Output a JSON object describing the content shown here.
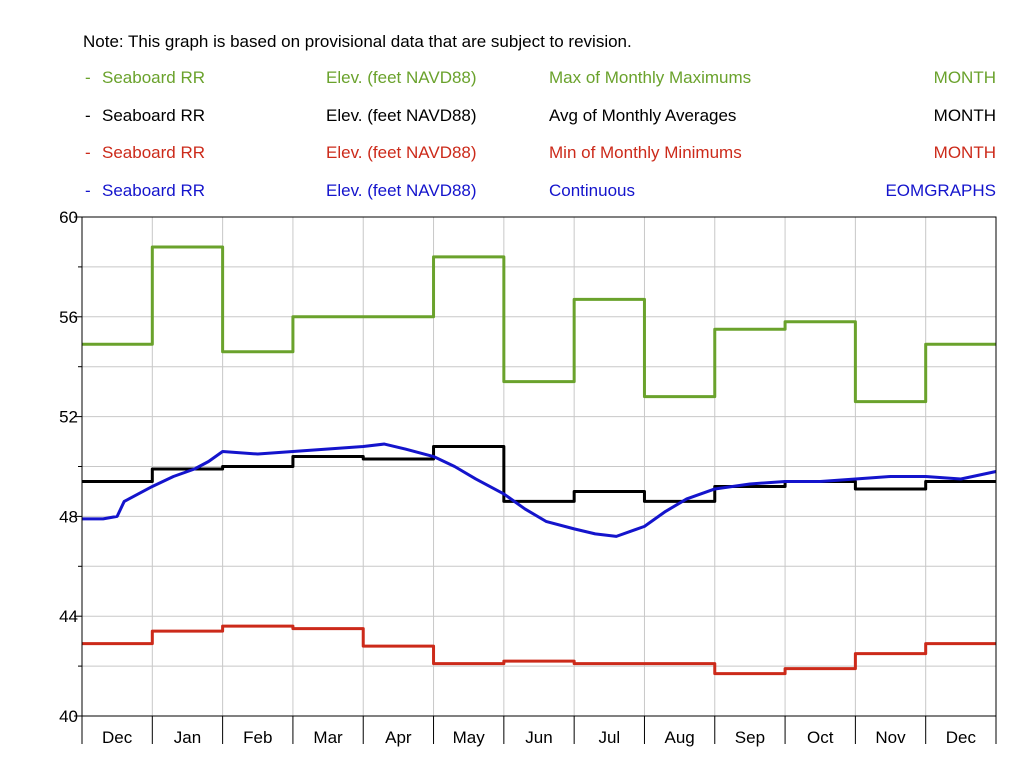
{
  "note": "Note: This graph is based on provisional data that are subject to revision.",
  "legend": [
    {
      "marker": "-",
      "location": "Seaboard RR",
      "parameter": "Elev. (feet NAVD88)",
      "statistic": "Max of Monthly Maximums",
      "interval": "MONTH",
      "color": "#6aa22c"
    },
    {
      "marker": "-",
      "location": "Seaboard RR",
      "parameter": "Elev. (feet NAVD88)",
      "statistic": "Avg of Monthly Averages",
      "interval": "MONTH",
      "color": "#000000"
    },
    {
      "marker": "-",
      "location": "Seaboard RR",
      "parameter": "Elev. (feet NAVD88)",
      "statistic": "Min of Monthly Minimums",
      "interval": "MONTH",
      "color": "#cc2a1a"
    },
    {
      "marker": "-",
      "location": "Seaboard RR",
      "parameter": "Elev. (feet NAVD88)",
      "statistic": "Continuous",
      "interval": "EOMGRAPHS",
      "color": "#1414cc"
    }
  ],
  "chart_data": {
    "type": "line",
    "categories": [
      "Dec",
      "Jan",
      "Feb",
      "Mar",
      "Apr",
      "May",
      "Jun",
      "Jul",
      "Aug",
      "Sep",
      "Oct",
      "Nov",
      "Dec"
    ],
    "y_ticks": [
      "60",
      "56",
      "52",
      "48",
      "44",
      "40"
    ],
    "ylim": [
      40,
      60
    ],
    "grid": true,
    "series": [
      {
        "name": "Max of Monthly Maximums",
        "color": "#6aa22c",
        "step": true,
        "values": [
          54.9,
          58.8,
          54.6,
          56.0,
          56.0,
          58.4,
          53.4,
          56.7,
          52.8,
          55.5,
          55.8,
          52.6,
          54.9
        ]
      },
      {
        "name": "Avg of Monthly Averages",
        "color": "#000000",
        "step": true,
        "values": [
          49.4,
          49.9,
          50.0,
          50.4,
          50.3,
          50.8,
          48.6,
          49.0,
          48.6,
          49.2,
          49.4,
          49.1,
          49.4
        ]
      },
      {
        "name": "Min of Monthly Minimums",
        "color": "#cc2a1a",
        "step": true,
        "values": [
          42.9,
          43.4,
          43.6,
          43.5,
          42.8,
          42.1,
          42.2,
          42.1,
          42.1,
          41.7,
          41.9,
          42.5,
          42.9
        ]
      },
      {
        "name": "Continuous",
        "color": "#1414cc",
        "step": false,
        "x": [
          0,
          0.3,
          0.5,
          0.6,
          0.8,
          1.0,
          1.3,
          1.6,
          1.8,
          2.0,
          2.5,
          3.0,
          3.5,
          4.0,
          4.3,
          4.6,
          5.0,
          5.3,
          5.6,
          6.0,
          6.3,
          6.6,
          7.0,
          7.3,
          7.6,
          8.0,
          8.3,
          8.6,
          9.0,
          9.5,
          10.0,
          10.5,
          11.0,
          11.5,
          12.0,
          12.5,
          13.0
        ],
        "values": [
          47.9,
          47.9,
          48.0,
          48.6,
          48.9,
          49.2,
          49.6,
          49.9,
          50.2,
          50.6,
          50.5,
          50.6,
          50.7,
          50.8,
          50.9,
          50.7,
          50.4,
          50.0,
          49.5,
          48.9,
          48.3,
          47.8,
          47.5,
          47.3,
          47.2,
          47.6,
          48.2,
          48.7,
          49.1,
          49.3,
          49.4,
          49.4,
          49.5,
          49.6,
          49.6,
          49.5,
          49.8
        ]
      }
    ]
  }
}
